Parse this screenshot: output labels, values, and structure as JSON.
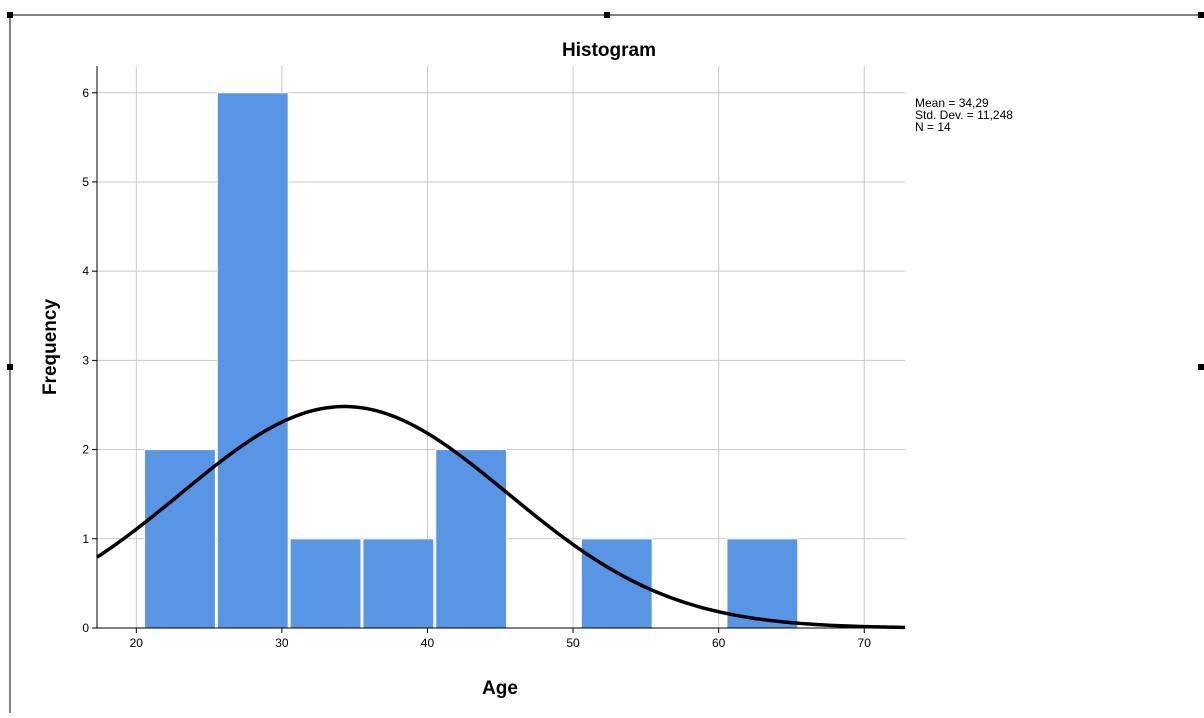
{
  "chart_data": {
    "type": "bar",
    "title": "Histogram",
    "xlabel": "Age",
    "ylabel": "Frequency",
    "xlim": [
      17.3,
      72.8
    ],
    "ylim": [
      0,
      6.3
    ],
    "grid": true,
    "x_ticks": [
      20,
      30,
      40,
      50,
      60,
      70
    ],
    "y_ticks": [
      0,
      1,
      2,
      3,
      4,
      5,
      6
    ],
    "bins": [
      {
        "start": 20.5,
        "end": 25.5,
        "count": 2
      },
      {
        "start": 25.5,
        "end": 30.5,
        "count": 6
      },
      {
        "start": 30.5,
        "end": 35.5,
        "count": 1
      },
      {
        "start": 35.5,
        "end": 40.5,
        "count": 1
      },
      {
        "start": 40.5,
        "end": 45.5,
        "count": 2
      },
      {
        "start": 45.5,
        "end": 50.5,
        "count": 0
      },
      {
        "start": 50.5,
        "end": 55.5,
        "count": 1
      },
      {
        "start": 55.5,
        "end": 60.5,
        "count": 0
      },
      {
        "start": 60.5,
        "end": 65.5,
        "count": 1
      }
    ],
    "normal_curve": {
      "mean": 34.29,
      "std": 11.248,
      "n": 14,
      "bin_width": 5
    },
    "stats_lines": [
      "Mean = 34,29",
      "Std. Dev. = 11,248",
      "N = 14"
    ],
    "stats_placement": "top-right",
    "bar_color": "#5896e5",
    "curve_color": "#000000",
    "grid_color": "#c8c8c8"
  }
}
